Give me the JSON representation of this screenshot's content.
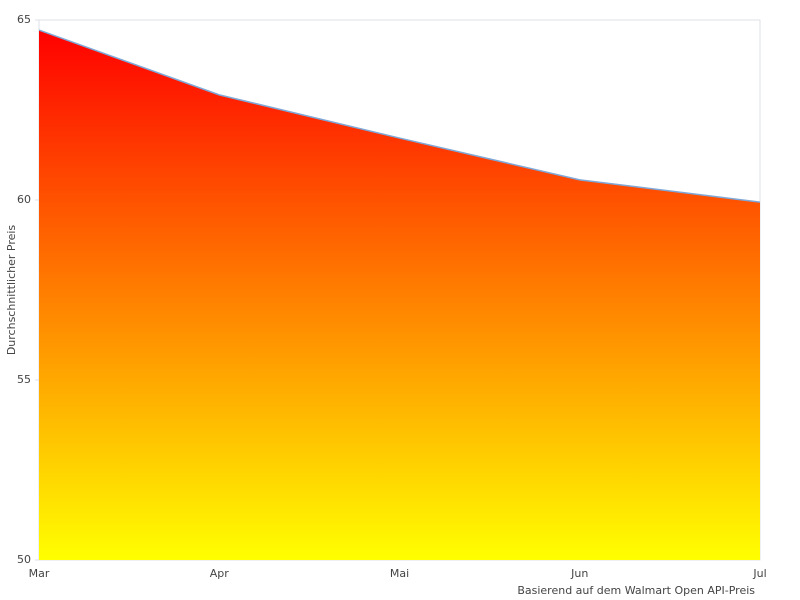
{
  "chart_data": {
    "type": "area",
    "categories": [
      "Mar",
      "Apr",
      "Mai",
      "Jun",
      "Jul"
    ],
    "values": [
      64.72,
      62.92,
      61.72,
      60.56,
      59.94
    ],
    "ylabel": "Durchschnittlicher Preis",
    "note": "Basierend auf dem Walmart Open API-Preis",
    "ylim": [
      50,
      65
    ],
    "yticks": [
      50,
      55,
      60,
      65
    ],
    "gradient": [
      "#ff0000",
      "#ffff00"
    ],
    "line_color": "#7fa8d8"
  }
}
